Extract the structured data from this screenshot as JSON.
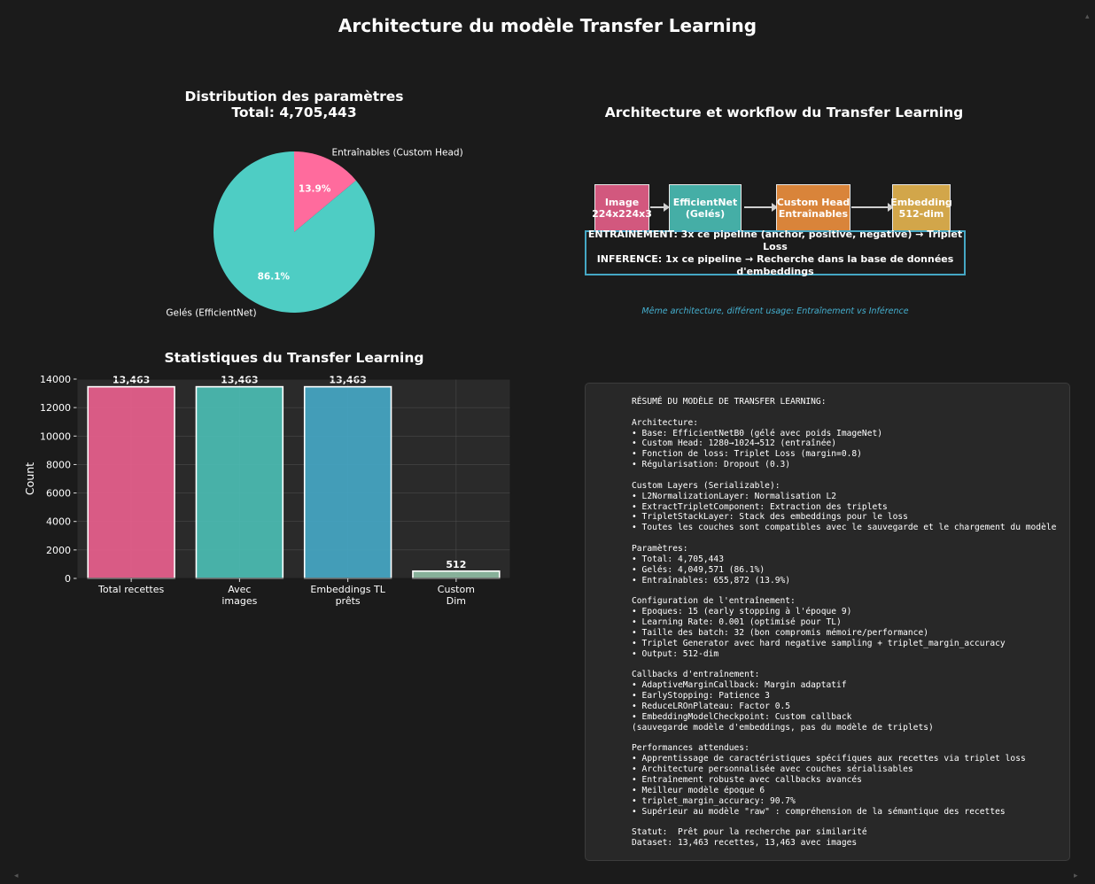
{
  "suptitle": "Architecture du modèle Transfer Learning",
  "pie": {
    "title_line1": "Distribution des paramètres",
    "title_line2": "Total: 4,705,443"
  },
  "diagram": {
    "title": "Architecture et workflow du Transfer Learning",
    "stages": [
      {
        "line1": "Image",
        "line2": "224x224x3",
        "color": "#d2587e"
      },
      {
        "line1": "EfficientNet",
        "line2": "(Gelés)",
        "color": "#45aea6"
      },
      {
        "line1": "Custom Head",
        "line2": "Entraînables",
        "color": "#d9843a"
      },
      {
        "line1": "Embedding",
        "line2": "512-dim",
        "color": "#d2a64a"
      }
    ],
    "pipeline_line1": "ENTRAINEMENT: 3x ce pipeline (anchor, positive, negative) → Triplet Loss",
    "pipeline_line2": "INFERENCE: 1x ce pipeline → Recherche dans la base de données d'embeddings",
    "caption": "Même architecture, différent usage: Entraînement vs Inférence"
  },
  "bars": {
    "title": "Statistiques du Transfer Learning"
  },
  "summary": {
    "text": "RÉSUMÉ DU MODÈLE DE TRANSFER LEARNING:\n\nArchitecture:\n• Base: EfficientNetB0 (gélé avec poids ImageNet)\n• Custom Head: 1280→1024→512 (entraînée)\n• Fonction de loss: Triplet Loss (margin=0.8)\n• Régularisation: Dropout (0.3)\n\nCustom Layers (Serializable):\n• L2NormalizationLayer: Normalisation L2\n• ExtractTripletComponent: Extraction des triplets\n• TripletStackLayer: Stack des embeddings pour le loss\n• Toutes les couches sont compatibles avec le sauvegarde et le chargement du modèle\n\nParamètres:\n• Total: 4,705,443\n• Gelés: 4,049,571 (86.1%)\n• Entraînables: 655,872 (13.9%)\n\nConfiguration de l'entraînement:\n• Epoques: 15 (early stopping à l'époque 9)\n• Learning Rate: 0.001 (optimisé pour TL)\n• Taille des batch: 32 (bon compromis mémoire/performance)\n• Triplet Generator avec hard negative sampling + triplet_margin_accuracy\n• Output: 512-dim\n\nCallbacks d'entraînement:\n• AdaptiveMarginCallback: Margin adaptatif\n• EarlyStopping: Patience 3\n• ReduceLROnPlateau: Factor 0.5\n• EmbeddingModelCheckpoint: Custom callback\n(sauvegarde modèle d'embeddings, pas du modèle de triplets)\n\nPerformances attendues:\n• Apprentissage de caractéristiques spécifiques aux recettes via triplet loss\n• Architecture personnalisée avec couches sérialisables\n• Entraînement robuste avec callbacks avancés\n• Meilleur modèle époque 6\n• triplet_margin_accuracy: 90.7%\n• Supérieur au modèle \"raw\" : compréhension de la sémantique des recettes\n\nStatut:  Prêt pour la recherche par similarité\nDataset: 13,463 recettes, 13,463 avec images"
  },
  "chart_data": [
    {
      "type": "pie",
      "title": "Distribution des paramètres\nTotal: 4,705,443",
      "labels": [
        "Entraînables (Custom Head)",
        "Gelés (EfficientNet)"
      ],
      "values": [
        655872,
        4049571
      ],
      "percent_labels": [
        "13.9%",
        "86.1%"
      ],
      "colors": [
        "#ff6b9d",
        "#4ecdc4"
      ]
    },
    {
      "type": "bar",
      "title": "Statistiques du Transfer Learning",
      "categories": [
        "Total recettes",
        "Avec\nimages",
        "Embeddings TL\nprêts",
        "Custom\nDim"
      ],
      "values": [
        13463,
        13463,
        13463,
        512
      ],
      "value_labels": [
        "13,463",
        "13,463",
        "13,463",
        "512"
      ],
      "colors": [
        "#e8608d",
        "#4bbdb3",
        "#45a7c4",
        "#8fbca3"
      ],
      "ylabel": "Count",
      "ylim": [
        0,
        14000
      ],
      "yticks": [
        0,
        2000,
        4000,
        6000,
        8000,
        10000,
        12000,
        14000
      ],
      "grid": true
    }
  ]
}
